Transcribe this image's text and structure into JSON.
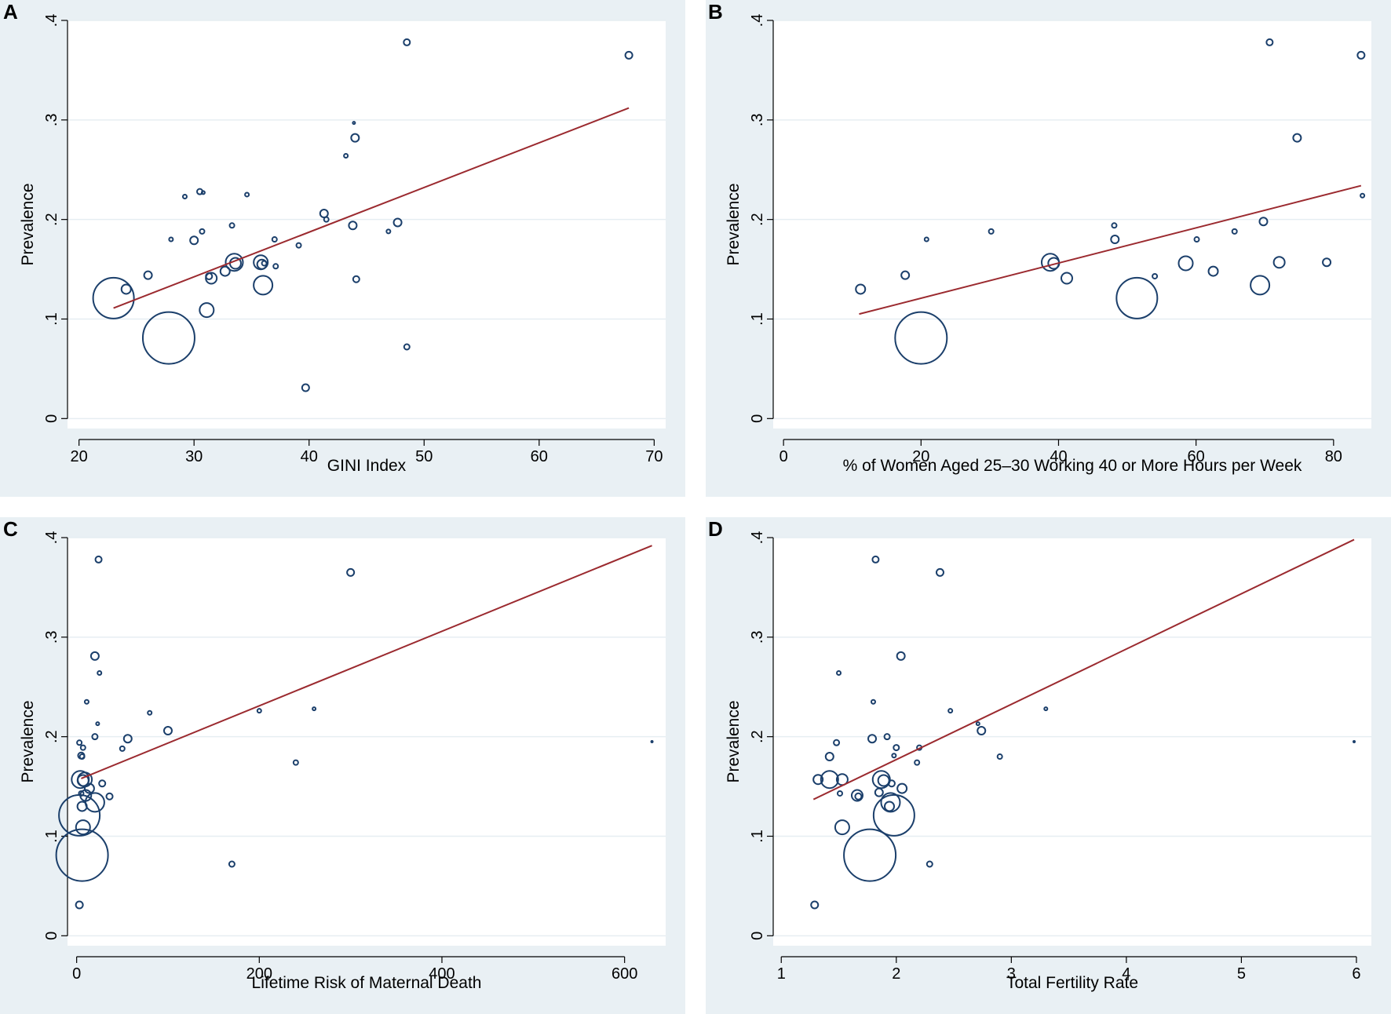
{
  "chart_data": [
    {
      "type": "scatter",
      "panel": "A",
      "xlabel": "GINI Index",
      "ylabel": "Prevalence",
      "xlim": [
        19,
        71
      ],
      "ylim": [
        -0.01,
        0.4
      ],
      "xticks": [
        20,
        30,
        40,
        50,
        60,
        70
      ],
      "xtick_labels": [
        "20",
        "30",
        "40",
        "50",
        "60",
        "70"
      ],
      "yticks": [
        0,
        0.1,
        0.2,
        0.3,
        0.4
      ],
      "ytick_labels": [
        "0",
        ".1",
        ".2",
        ".3",
        ".4"
      ],
      "grid": true,
      "fit_line": {
        "x": [
          23,
          67.8
        ],
        "y": [
          0.111,
          0.312
        ]
      },
      "points": [
        {
          "x": 23.0,
          "y": 0.121,
          "r": 26
        },
        {
          "x": 24.1,
          "y": 0.13,
          "r": 6
        },
        {
          "x": 26.0,
          "y": 0.144,
          "r": 5
        },
        {
          "x": 27.8,
          "y": 0.081,
          "r": 33
        },
        {
          "x": 28.0,
          "y": 0.18,
          "r": 2.5
        },
        {
          "x": 29.2,
          "y": 0.223,
          "r": 2.5
        },
        {
          "x": 30.0,
          "y": 0.179,
          "r": 5
        },
        {
          "x": 30.5,
          "y": 0.228,
          "r": 3.5
        },
        {
          "x": 30.8,
          "y": 0.227,
          "r": 2
        },
        {
          "x": 30.7,
          "y": 0.188,
          "r": 3
        },
        {
          "x": 31.1,
          "y": 0.109,
          "r": 9
        },
        {
          "x": 31.3,
          "y": 0.143,
          "r": 4
        },
        {
          "x": 31.5,
          "y": 0.141,
          "r": 7
        },
        {
          "x": 32.7,
          "y": 0.148,
          "r": 6
        },
        {
          "x": 33.3,
          "y": 0.194,
          "r": 3
        },
        {
          "x": 33.5,
          "y": 0.157,
          "r": 11
        },
        {
          "x": 33.6,
          "y": 0.156,
          "r": 7
        },
        {
          "x": 34.6,
          "y": 0.225,
          "r": 2.5
        },
        {
          "x": 35.8,
          "y": 0.157,
          "r": 9
        },
        {
          "x": 35.9,
          "y": 0.155,
          "r": 6
        },
        {
          "x": 36.0,
          "y": 0.134,
          "r": 12
        },
        {
          "x": 36.1,
          "y": 0.156,
          "r": 3
        },
        {
          "x": 37.0,
          "y": 0.18,
          "r": 3
        },
        {
          "x": 37.1,
          "y": 0.153,
          "r": 3
        },
        {
          "x": 39.1,
          "y": 0.174,
          "r": 3
        },
        {
          "x": 39.7,
          "y": 0.031,
          "r": 4.5
        },
        {
          "x": 41.3,
          "y": 0.206,
          "r": 5
        },
        {
          "x": 41.5,
          "y": 0.2,
          "r": 3
        },
        {
          "x": 43.2,
          "y": 0.264,
          "r": 2.5
        },
        {
          "x": 43.8,
          "y": 0.194,
          "r": 5
        },
        {
          "x": 43.9,
          "y": 0.297,
          "r": 1.5
        },
        {
          "x": 44.0,
          "y": 0.282,
          "r": 5
        },
        {
          "x": 44.1,
          "y": 0.14,
          "r": 4
        },
        {
          "x": 46.9,
          "y": 0.188,
          "r": 2.5
        },
        {
          "x": 47.7,
          "y": 0.197,
          "r": 5
        },
        {
          "x": 48.5,
          "y": 0.378,
          "r": 4
        },
        {
          "x": 48.5,
          "y": 0.072,
          "r": 3.5
        },
        {
          "x": 67.8,
          "y": 0.365,
          "r": 4.5
        }
      ]
    },
    {
      "type": "scatter",
      "panel": "B",
      "xlabel": "% of Women Aged 25–30 Working 40 or More Hours per Week",
      "ylabel": "Prevalence",
      "xlim": [
        -1.5,
        85.5
      ],
      "ylim": [
        -0.01,
        0.4
      ],
      "xticks": [
        0,
        20,
        40,
        60,
        80
      ],
      "xtick_labels": [
        "0",
        "20",
        "40",
        "60",
        "80"
      ],
      "yticks": [
        0,
        0.1,
        0.2,
        0.3,
        0.4
      ],
      "ytick_labels": [
        "0",
        ".1",
        ".2",
        ".3",
        ".4"
      ],
      "grid": true,
      "fit_line": {
        "x": [
          11,
          84
        ],
        "y": [
          0.105,
          0.234
        ]
      },
      "points": [
        {
          "x": 11.2,
          "y": 0.13,
          "r": 6
        },
        {
          "x": 17.7,
          "y": 0.144,
          "r": 5
        },
        {
          "x": 20.0,
          "y": 0.081,
          "r": 33
        },
        {
          "x": 20.8,
          "y": 0.18,
          "r": 2.5
        },
        {
          "x": 30.2,
          "y": 0.188,
          "r": 3
        },
        {
          "x": 38.8,
          "y": 0.157,
          "r": 11
        },
        {
          "x": 39.3,
          "y": 0.156,
          "r": 7
        },
        {
          "x": 41.2,
          "y": 0.141,
          "r": 7
        },
        {
          "x": 48.1,
          "y": 0.194,
          "r": 3
        },
        {
          "x": 48.2,
          "y": 0.18,
          "r": 5
        },
        {
          "x": 51.4,
          "y": 0.121,
          "r": 26
        },
        {
          "x": 54.0,
          "y": 0.143,
          "r": 3
        },
        {
          "x": 58.5,
          "y": 0.156,
          "r": 9
        },
        {
          "x": 60.1,
          "y": 0.18,
          "r": 3
        },
        {
          "x": 62.5,
          "y": 0.148,
          "r": 6
        },
        {
          "x": 65.6,
          "y": 0.188,
          "r": 3
        },
        {
          "x": 69.3,
          "y": 0.134,
          "r": 12
        },
        {
          "x": 69.8,
          "y": 0.198,
          "r": 5
        },
        {
          "x": 70.7,
          "y": 0.378,
          "r": 4
        },
        {
          "x": 72.1,
          "y": 0.157,
          "r": 7
        },
        {
          "x": 74.7,
          "y": 0.282,
          "r": 5
        },
        {
          "x": 79.0,
          "y": 0.157,
          "r": 5
        },
        {
          "x": 84.0,
          "y": 0.365,
          "r": 4.5
        },
        {
          "x": 84.2,
          "y": 0.224,
          "r": 2.5
        }
      ]
    },
    {
      "type": "scatter",
      "panel": "C",
      "xlabel": "Lifetime Risk of Maternal Death",
      "ylabel": "Prevalence",
      "xlim": [
        -10,
        645
      ],
      "ylim": [
        -0.01,
        0.4
      ],
      "xticks": [
        0,
        200,
        400,
        600
      ],
      "xtick_labels": [
        "0",
        "200",
        "400",
        "600"
      ],
      "yticks": [
        0,
        0.1,
        0.2,
        0.3,
        0.4
      ],
      "ytick_labels": [
        "0",
        ".1",
        ".2",
        ".3",
        ".4"
      ],
      "grid": true,
      "fit_line": {
        "x": [
          5,
          630
        ],
        "y": [
          0.158,
          0.392
        ]
      },
      "points": [
        {
          "x": 6,
          "y": 0.081,
          "r": 33
        },
        {
          "x": 3,
          "y": 0.121,
          "r": 26
        },
        {
          "x": 3,
          "y": 0.031,
          "r": 4.5
        },
        {
          "x": 7,
          "y": 0.109,
          "r": 9
        },
        {
          "x": 6,
          "y": 0.13,
          "r": 6
        },
        {
          "x": 20,
          "y": 0.134,
          "r": 12
        },
        {
          "x": 4,
          "y": 0.157,
          "r": 11
        },
        {
          "x": 7,
          "y": 0.156,
          "r": 7
        },
        {
          "x": 9,
          "y": 0.157,
          "r": 9
        },
        {
          "x": 10,
          "y": 0.141,
          "r": 7
        },
        {
          "x": 14,
          "y": 0.148,
          "r": 6
        },
        {
          "x": 5,
          "y": 0.143,
          "r": 3
        },
        {
          "x": 5,
          "y": 0.181,
          "r": 4
        },
        {
          "x": 6,
          "y": 0.18,
          "r": 3
        },
        {
          "x": 7,
          "y": 0.189,
          "r": 3
        },
        {
          "x": 3,
          "y": 0.194,
          "r": 3
        },
        {
          "x": 28,
          "y": 0.153,
          "r": 4
        },
        {
          "x": 36,
          "y": 0.14,
          "r": 4
        },
        {
          "x": 20,
          "y": 0.281,
          "r": 5
        },
        {
          "x": 24,
          "y": 0.378,
          "r": 4
        },
        {
          "x": 25,
          "y": 0.264,
          "r": 2.5
        },
        {
          "x": 11,
          "y": 0.235,
          "r": 2.5
        },
        {
          "x": 20,
          "y": 0.2,
          "r": 3.5
        },
        {
          "x": 23,
          "y": 0.213,
          "r": 2
        },
        {
          "x": 50,
          "y": 0.188,
          "r": 3
        },
        {
          "x": 56,
          "y": 0.198,
          "r": 5
        },
        {
          "x": 80,
          "y": 0.224,
          "r": 2.5
        },
        {
          "x": 100,
          "y": 0.206,
          "r": 5
        },
        {
          "x": 200,
          "y": 0.226,
          "r": 2.5
        },
        {
          "x": 240,
          "y": 0.174,
          "r": 3
        },
        {
          "x": 260,
          "y": 0.228,
          "r": 2
        },
        {
          "x": 170,
          "y": 0.072,
          "r": 3.5
        },
        {
          "x": 300,
          "y": 0.365,
          "r": 4.5
        },
        {
          "x": 630,
          "y": 0.195,
          "r": 1
        }
      ]
    },
    {
      "type": "scatter",
      "panel": "D",
      "xlabel": "Total Fertility Rate",
      "ylabel": "Prevalence",
      "xlim": [
        0.93,
        6.13
      ],
      "ylim": [
        -0.01,
        0.4
      ],
      "xticks": [
        1,
        2,
        3,
        4,
        5,
        6
      ],
      "xtick_labels": [
        "1",
        "2",
        "3",
        "4",
        "5",
        "6"
      ],
      "yticks": [
        0,
        0.1,
        0.2,
        0.3,
        0.4
      ],
      "ytick_labels": [
        "0",
        ".1",
        ".2",
        ".3",
        ".4"
      ],
      "grid": true,
      "fit_line": {
        "x": [
          1.28,
          5.98
        ],
        "y": [
          0.137,
          0.398
        ]
      },
      "points": [
        {
          "x": 1.29,
          "y": 0.031,
          "r": 4.5
        },
        {
          "x": 1.32,
          "y": 0.157,
          "r": 6
        },
        {
          "x": 1.42,
          "y": 0.18,
          "r": 5
        },
        {
          "x": 1.42,
          "y": 0.157,
          "r": 11
        },
        {
          "x": 1.48,
          "y": 0.194,
          "r": 3.5
        },
        {
          "x": 1.5,
          "y": 0.264,
          "r": 2.5
        },
        {
          "x": 1.51,
          "y": 0.143,
          "r": 3
        },
        {
          "x": 1.53,
          "y": 0.157,
          "r": 7
        },
        {
          "x": 1.53,
          "y": 0.109,
          "r": 9
        },
        {
          "x": 1.66,
          "y": 0.141,
          "r": 7
        },
        {
          "x": 1.67,
          "y": 0.14,
          "r": 4
        },
        {
          "x": 1.77,
          "y": 0.081,
          "r": 33
        },
        {
          "x": 1.79,
          "y": 0.198,
          "r": 5
        },
        {
          "x": 1.8,
          "y": 0.235,
          "r": 2.5
        },
        {
          "x": 1.82,
          "y": 0.378,
          "r": 4
        },
        {
          "x": 1.85,
          "y": 0.144,
          "r": 5
        },
        {
          "x": 1.87,
          "y": 0.157,
          "r": 11
        },
        {
          "x": 1.89,
          "y": 0.156,
          "r": 7
        },
        {
          "x": 1.92,
          "y": 0.2,
          "r": 3.5
        },
        {
          "x": 1.94,
          "y": 0.13,
          "r": 6
        },
        {
          "x": 1.95,
          "y": 0.134,
          "r": 12
        },
        {
          "x": 1.96,
          "y": 0.153,
          "r": 4
        },
        {
          "x": 1.98,
          "y": 0.121,
          "r": 26
        },
        {
          "x": 1.98,
          "y": 0.181,
          "r": 2.5
        },
        {
          "x": 2.0,
          "y": 0.189,
          "r": 3.5
        },
        {
          "x": 2.04,
          "y": 0.281,
          "r": 5
        },
        {
          "x": 2.05,
          "y": 0.148,
          "r": 6
        },
        {
          "x": 2.18,
          "y": 0.174,
          "r": 3
        },
        {
          "x": 2.2,
          "y": 0.189,
          "r": 3
        },
        {
          "x": 2.29,
          "y": 0.072,
          "r": 3.5
        },
        {
          "x": 2.38,
          "y": 0.365,
          "r": 4.5
        },
        {
          "x": 2.47,
          "y": 0.226,
          "r": 2.5
        },
        {
          "x": 2.71,
          "y": 0.213,
          "r": 2
        },
        {
          "x": 2.74,
          "y": 0.206,
          "r": 5
        },
        {
          "x": 2.9,
          "y": 0.18,
          "r": 3
        },
        {
          "x": 3.3,
          "y": 0.228,
          "r": 2
        },
        {
          "x": 5.98,
          "y": 0.195,
          "r": 1
        }
      ]
    }
  ]
}
